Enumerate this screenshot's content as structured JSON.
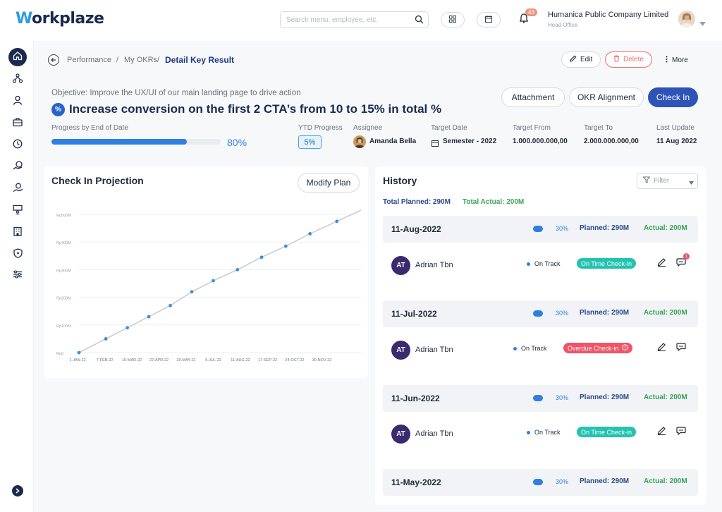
{
  "app": {
    "logo_text": "orkplaze",
    "logo_initial": "W",
    "search_placeholder": "Search menu, employee, etc.",
    "notification_count": "43",
    "company_name": "Humanica Public Company Limited",
    "company_branch": "Head Office"
  },
  "sidebar": {
    "items": [
      {
        "icon": "home-icon",
        "active": true
      },
      {
        "icon": "org-chart-icon"
      },
      {
        "icon": "person-icon"
      },
      {
        "icon": "briefcase-icon"
      },
      {
        "icon": "clock-icon"
      },
      {
        "icon": "money-icon"
      },
      {
        "icon": "payroll-icon"
      },
      {
        "icon": "training-icon"
      },
      {
        "icon": "building-icon"
      },
      {
        "icon": "shield-icon"
      },
      {
        "icon": "settings-sliders-icon"
      }
    ]
  },
  "breadcrumb": {
    "items": [
      "Performance",
      "My OKRs"
    ],
    "current": "Detail Key Result",
    "separator": "/"
  },
  "header_actions": {
    "edit": "Edit",
    "delete": "Delete",
    "more": "More"
  },
  "key_result": {
    "objective": "Objective: Improve the UX/UI of our main landing page to drive action",
    "icon_symbol": "%",
    "title": "Increase conversion on the first 2 CTA’s from 10 to 15% in total %",
    "actions": {
      "attachment": "Attachment",
      "okr_alignment": "OKR Alignment",
      "check_in": "Check In"
    },
    "progress_label": "Progress by End of Date",
    "progress_value": 0.8,
    "progress_text": "80%",
    "ytd_label": "YTD Progress",
    "ytd_value": "5%",
    "assignee_label": "Assignee",
    "assignee": "Amanda Bella",
    "target_date_label": "Target Date",
    "target_date": "Semester - 2022",
    "target_from_label": "Target From",
    "target_from": "1.000.000.000,00",
    "target_to_label": "Target To",
    "target_to": "2.000.000.000,00",
    "last_update_label": "Last Update",
    "last_update": "11 Aug 2022"
  },
  "projection": {
    "title": "Check In Projection",
    "modify_button": "Modify Plan"
  },
  "chart_data": {
    "type": "line",
    "title": "",
    "xlabel": "",
    "ylabel": "",
    "y_tick_labels": [
      "Rp0",
      "Rp100M",
      "Rp200M",
      "Rp300M",
      "Rp400M",
      "Rp500M"
    ],
    "y_ticks": [
      0,
      100,
      200,
      300,
      400,
      500
    ],
    "ylim": [
      0,
      500
    ],
    "x_tick_labels": [
      "1-JAN-22",
      "7-FEB-22",
      "16-MAR-22",
      "22-APR-22",
      "29-MAY-22",
      "5-JUL-22",
      "11-AUG-22",
      "17-SEP-22",
      "24-OCT-22",
      "30-NOV-22"
    ],
    "grid": true,
    "series": [
      {
        "x": [
          0,
          1,
          1.8,
          2.6,
          3.4,
          4.2,
          5.0,
          5.9,
          6.8,
          7.7,
          8.6,
          9.6,
          10.5
        ],
        "values": [
          0,
          50,
          90,
          130,
          170,
          220,
          260,
          300,
          345,
          385,
          430,
          475,
          515
        ]
      }
    ],
    "line_color": "#c8ccd4",
    "marker_color": "#3a8fd8"
  },
  "history": {
    "title": "History",
    "filter_placeholder": "Filter",
    "total_planned": "Total Planned: 290M",
    "total_actual": "Total Actual: 200M",
    "entries": [
      {
        "date": "11-Aug-2022",
        "pct": "30%",
        "planned": "Planned: 290M",
        "actual": "Actual: 200M",
        "initials": "AT",
        "name": "Adrian Tbn",
        "status": "On Track",
        "checkin": "On Time Check-in",
        "checkin_type": "ontime",
        "comment_count": "1"
      },
      {
        "date": "11-Jul-2022",
        "pct": "30%",
        "planned": "Planned: 290M",
        "actual": "Actual: 200M",
        "initials": "AT",
        "name": "Adrian Tbn",
        "status": "On Track",
        "checkin": "Overdue Check-in",
        "checkin_type": "overdue"
      },
      {
        "date": "11-Jun-2022",
        "pct": "30%",
        "planned": "Planned: 290M",
        "actual": "Actual: 200M",
        "initials": "AT",
        "name": "Adrian Tbn",
        "status": "On Track",
        "checkin": "On Time Check-in",
        "checkin_type": "ontime"
      },
      {
        "date": "11-May-2022",
        "pct": "30%",
        "planned": "Planned: 290M",
        "actual": "Actual: 200M"
      }
    ]
  }
}
